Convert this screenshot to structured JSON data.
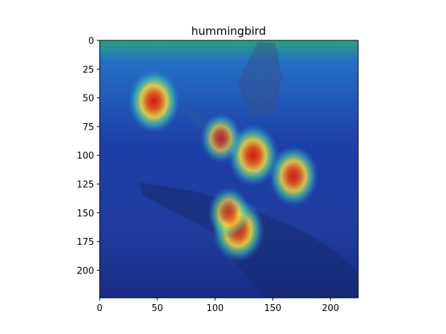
{
  "chart_data": {
    "type": "heatmap",
    "title": "hummingbird",
    "xlabel": "",
    "ylabel": "",
    "xlim": [
      0,
      224
    ],
    "ylim": [
      224,
      0
    ],
    "x_ticks": [
      0,
      50,
      100,
      150,
      200
    ],
    "y_ticks": [
      0,
      25,
      50,
      75,
      100,
      125,
      150,
      175,
      200
    ],
    "colormap": "jet",
    "grid": false,
    "hotspots": [
      {
        "x": 47,
        "y": 53,
        "intensity": 1.0
      },
      {
        "x": 133,
        "y": 100,
        "intensity": 0.95
      },
      {
        "x": 168,
        "y": 118,
        "intensity": 0.9
      },
      {
        "x": 120,
        "y": 165,
        "intensity": 1.0
      },
      {
        "x": 112,
        "y": 150,
        "intensity": 0.6
      },
      {
        "x": 105,
        "y": 85,
        "intensity": 0.55
      }
    ]
  }
}
